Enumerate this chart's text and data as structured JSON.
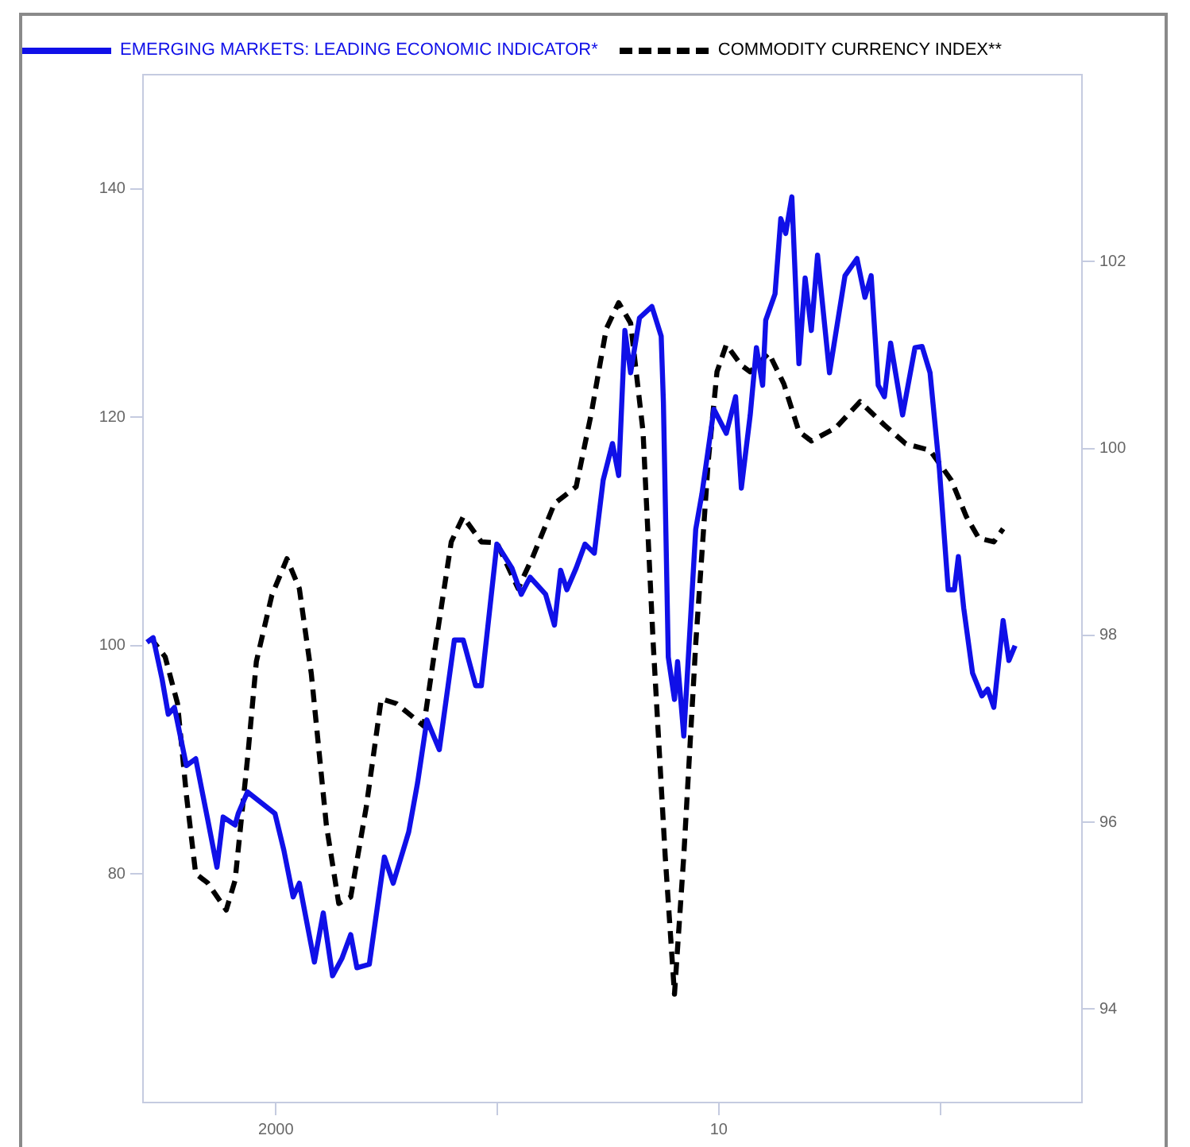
{
  "chart_data": {
    "type": "line",
    "legend": "top left",
    "grid": false,
    "marker": "none",
    "xlim": [
      1997,
      2018.2
    ],
    "xticks": [
      {
        "value": 2000,
        "label": "2000"
      },
      {
        "value": 2005,
        "label": null
      },
      {
        "value": 2010,
        "label": "10"
      },
      {
        "value": 2015,
        "label": null
      }
    ],
    "ylim": [
      60,
      150
    ],
    "yticks": [
      80,
      100,
      120,
      140
    ],
    "y2lim": [
      93,
      104
    ],
    "y2ticks": [
      94,
      96,
      98,
      100,
      102
    ],
    "series": [
      {
        "name": "EMERGING MARKETS: LEADING ECONOMIC INDICATOR*",
        "color": "#1010e8",
        "line_style": "solid",
        "axis": "y",
        "x": [
          1997.09,
          1997.23,
          1997.43,
          1997.57,
          1997.71,
          1997.98,
          1998.19,
          1998.46,
          1998.67,
          1998.81,
          1999.08,
          1999.15,
          1999.36,
          1999.98,
          2000.18,
          2000.39,
          2000.53,
          2000.87,
          2001.07,
          2001.28,
          2001.49,
          2001.69,
          2001.83,
          2002.11,
          2002.45,
          2002.65,
          2003.0,
          2003.2,
          2003.41,
          2003.69,
          2004.03,
          2004.23,
          2004.51,
          2004.64,
          2004.99,
          2005.33,
          2005.54,
          2005.74,
          2006.09,
          2006.29,
          2006.43,
          2006.57,
          2006.78,
          2006.98,
          2007.19,
          2007.39,
          2007.6,
          2007.74,
          2007.88,
          2008.01,
          2008.21,
          2008.49,
          2008.7,
          2008.75,
          2008.86,
          2009.0,
          2009.07,
          2009.21,
          2009.48,
          2009.62,
          2009.89,
          2010.17,
          2010.38,
          2010.51,
          2010.71,
          2010.85,
          2010.99,
          2011.06,
          2011.27,
          2011.4,
          2011.51,
          2011.65,
          2011.81,
          2011.95,
          2012.09,
          2012.23,
          2012.5,
          2012.85,
          2013.12,
          2013.3,
          2013.44,
          2013.6,
          2013.74,
          2013.88,
          2014.15,
          2014.43,
          2014.59,
          2014.77,
          2014.98,
          2015.18,
          2015.32,
          2015.41,
          2015.53,
          2015.73,
          2015.94,
          2016.07,
          2016.21,
          2016.42,
          2016.55,
          2016.69
        ],
        "values": [
          100.3,
          100.7,
          97.1,
          94.0,
          94.6,
          89.5,
          90.1,
          84.8,
          80.6,
          85.0,
          84.3,
          85.3,
          87.2,
          85.3,
          82.1,
          78.0,
          79.2,
          72.3,
          76.6,
          71.1,
          72.6,
          74.7,
          71.8,
          72.1,
          81.5,
          79.2,
          83.7,
          88.0,
          93.5,
          90.9,
          100.5,
          100.5,
          96.5,
          96.5,
          108.9,
          106.8,
          104.5,
          106.0,
          104.5,
          101.8,
          106.6,
          104.9,
          106.8,
          108.9,
          108.1,
          114.5,
          117.7,
          114.9,
          127.6,
          123.9,
          128.7,
          129.7,
          127.1,
          121.3,
          99.0,
          95.3,
          98.6,
          92.1,
          110.2,
          113.3,
          120.7,
          118.6,
          121.8,
          113.8,
          120.2,
          126.1,
          122.8,
          128.5,
          130.8,
          137.4,
          136.1,
          139.3,
          124.7,
          132.2,
          127.6,
          134.2,
          123.9,
          132.4,
          133.9,
          130.5,
          132.4,
          122.8,
          121.8,
          126.5,
          120.2,
          126.1,
          126.2,
          123.9,
          115.5,
          104.9,
          104.9,
          107.8,
          103.3,
          97.6,
          95.6,
          96.2,
          94.6,
          102.2,
          98.7,
          100.0
        ]
      },
      {
        "name": "COMMODITY CURRENCY INDEX**",
        "color": "#000000",
        "line_style": "dashed",
        "axis": "y2",
        "x": [
          1997.16,
          1997.5,
          1997.78,
          1997.98,
          1998.19,
          1998.46,
          1998.88,
          1999.08,
          1999.36,
          1999.56,
          1999.91,
          2000.25,
          2000.53,
          2000.8,
          2001.14,
          2001.42,
          2001.69,
          2002.04,
          2002.38,
          2002.72,
          2003.34,
          2003.61,
          2003.96,
          2004.23,
          2004.64,
          2004.99,
          2005.47,
          2005.81,
          2006.29,
          2006.78,
          2007.12,
          2007.46,
          2007.74,
          2008.01,
          2008.29,
          2008.52,
          2008.79,
          2009.0,
          2009.21,
          2009.48,
          2009.76,
          2009.96,
          2010.17,
          2010.51,
          2010.71,
          2011.13,
          2011.47,
          2011.81,
          2012.09,
          2012.64,
          2013.19,
          2013.74,
          2014.22,
          2014.77,
          2015.25,
          2015.59,
          2015.87,
          2016.21,
          2016.42
        ],
        "values": [
          97.98,
          97.77,
          97.27,
          96.29,
          95.45,
          95.35,
          95.06,
          95.38,
          96.68,
          97.72,
          98.43,
          98.82,
          98.5,
          97.59,
          95.97,
          95.13,
          95.2,
          96.16,
          97.32,
          97.27,
          97.03,
          97.91,
          99.0,
          99.27,
          99.0,
          98.99,
          98.5,
          98.85,
          99.41,
          99.59,
          100.37,
          101.28,
          101.56,
          101.34,
          100.18,
          97.91,
          95.64,
          94.16,
          95.64,
          97.91,
          99.85,
          100.82,
          101.11,
          100.89,
          100.82,
          101.02,
          100.69,
          100.18,
          100.08,
          100.22,
          100.5,
          100.25,
          100.05,
          99.98,
          99.66,
          99.27,
          99.04,
          99.0,
          99.14
        ]
      }
    ]
  }
}
